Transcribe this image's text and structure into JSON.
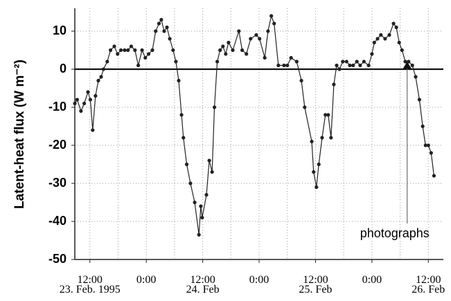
{
  "chart_data": {
    "type": "line",
    "y_label": "Latent-heat flux (W m⁻²)",
    "x": [
      -3.2,
      -2.7,
      -1.9,
      -1.2,
      -0.4,
      0.1,
      0.6,
      1.2,
      1.8,
      2.4,
      2.9,
      3.7,
      4.4,
      5.2,
      5.9,
      6.6,
      7.4,
      8.1,
      8.8,
      9.6,
      10.3,
      11.1,
      11.8,
      12.5,
      13.3,
      14.0,
      14.7,
      15.2,
      15.8,
      16.4,
      17.0,
      17.7,
      18.3,
      18.9,
      19.5,
      19.9,
      20.6,
      21.4,
      22.3,
      23.2,
      23.6,
      23.9,
      24.8,
      25.4,
      26.0,
      26.5,
      27.1,
      27.7,
      28.3,
      28.9,
      29.5,
      30.4,
      31.7,
      32.4,
      33.3,
      34.2,
      35.4,
      36.1,
      37.2,
      37.9,
      38.6,
      39.2,
      40.1,
      41.3,
      42.0,
      42.8,
      44.0,
      45.0,
      45.7,
      47.2,
      47.6,
      48.2,
      48.7,
      49.4,
      50.1,
      50.7,
      51.3,
      51.9,
      52.5,
      53.1,
      53.8,
      54.6,
      55.3,
      56.0,
      56.8,
      57.5,
      58.3,
      59.3,
      60.0,
      60.5,
      61.2,
      61.9,
      62.8,
      63.7,
      64.6,
      65.2,
      65.8,
      66.4,
      67.1,
      67.8,
      68.6,
      69.3,
      70.1,
      70.8,
      71.4,
      72.0,
      72.6,
      73.2
    ],
    "series": [
      {
        "color": "#222222",
        "values": [
          -9,
          -8,
          -11,
          -9,
          -6,
          -8,
          -16,
          -7,
          -3,
          -2,
          0,
          2,
          5,
          6,
          4,
          5,
          5,
          5,
          6,
          5,
          1,
          5,
          3,
          4,
          5,
          10,
          12,
          13,
          10,
          11,
          8,
          5,
          2,
          -3,
          -12,
          -18,
          -25,
          -30,
          -35,
          -43.5,
          -36,
          -39,
          -33,
          -24,
          -27,
          -10,
          2,
          5,
          6,
          4,
          7,
          5,
          10,
          5,
          4,
          8,
          9,
          8,
          3,
          10,
          14,
          12,
          1,
          1,
          1,
          3,
          2,
          -3,
          -10,
          -19,
          -27,
          -31,
          -25,
          -18,
          -12,
          -12,
          -18,
          -4,
          1,
          0,
          2,
          2,
          1,
          1,
          2,
          1,
          2,
          1,
          4,
          7,
          8,
          9,
          8,
          9,
          12,
          11,
          7,
          5,
          2,
          2,
          1,
          -2,
          -8,
          -15,
          -20,
          -20,
          -22,
          -28
        ]
      }
    ],
    "xlim": [
      -3.2,
      75.2
    ],
    "ylim": [
      -50,
      16
    ],
    "yticks": [
      -50,
      -40,
      -30,
      -20,
      -10,
      0,
      10
    ],
    "xticks": [
      {
        "value": 0,
        "label": "12:00"
      },
      {
        "value": 12,
        "label": "0:00"
      },
      {
        "value": 24,
        "label": "12:00"
      },
      {
        "value": 36,
        "label": "0:00"
      },
      {
        "value": 48,
        "label": "12:00"
      },
      {
        "value": 60,
        "label": "0:00"
      },
      {
        "value": 72,
        "label": "12:00"
      }
    ],
    "xtick_dates": [
      {
        "value": 0,
        "label": "23. Feb. 1995"
      },
      {
        "value": 24,
        "label": "24. Feb"
      },
      {
        "value": 48,
        "label": "25. Feb"
      },
      {
        "value": 72,
        "label": "26. Feb"
      }
    ],
    "xgrid_minor": [
      6,
      18,
      30,
      42,
      54,
      66
    ],
    "grid": true,
    "annotation": {
      "text": "photographs",
      "x": 67.5
    }
  }
}
